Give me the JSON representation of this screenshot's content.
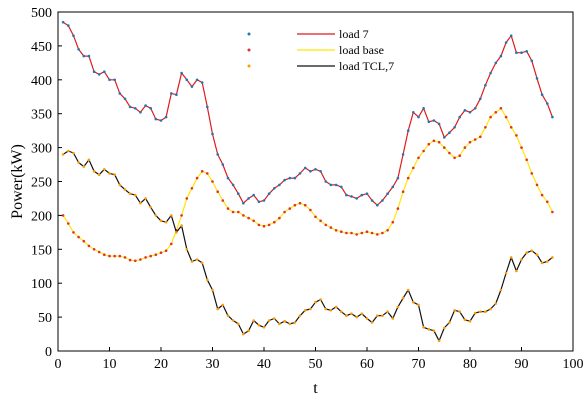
{
  "chart_data": {
    "type": "line",
    "xlabel": "t",
    "ylabel": "Power(kW)",
    "xlim": [
      0,
      100
    ],
    "ylim": [
      0,
      500
    ],
    "xticks": [
      0,
      10,
      20,
      30,
      40,
      50,
      60,
      70,
      80,
      90,
      100
    ],
    "yticks": [
      0,
      50,
      100,
      150,
      200,
      250,
      300,
      350,
      400,
      450,
      500
    ],
    "grid": false,
    "legend_position": "top-center",
    "series": [
      {
        "name": "load 7",
        "color": "#dd1c1c",
        "marker_color": "#1f77b4",
        "x": [
          1,
          2,
          3,
          4,
          5,
          6,
          7,
          8,
          9,
          10,
          11,
          12,
          13,
          14,
          15,
          16,
          17,
          18,
          19,
          20,
          21,
          22,
          23,
          24,
          25,
          26,
          27,
          28,
          29,
          30,
          31,
          32,
          33,
          34,
          35,
          36,
          37,
          38,
          39,
          40,
          41,
          42,
          43,
          44,
          45,
          46,
          47,
          48,
          49,
          50,
          51,
          52,
          53,
          54,
          55,
          56,
          57,
          58,
          59,
          60,
          61,
          62,
          63,
          64,
          65,
          66,
          67,
          68,
          69,
          70,
          71,
          72,
          73,
          74,
          75,
          76,
          77,
          78,
          79,
          80,
          81,
          82,
          83,
          84,
          85,
          86,
          87,
          88,
          89,
          90,
          91,
          92,
          93,
          94,
          95,
          96
        ],
        "values": [
          485,
          480,
          465,
          445,
          435,
          435,
          412,
          408,
          412,
          400,
          400,
          380,
          372,
          360,
          358,
          352,
          362,
          358,
          342,
          340,
          345,
          380,
          378,
          410,
          400,
          390,
          400,
          396,
          360,
          320,
          290,
          275,
          255,
          245,
          232,
          218,
          225,
          230,
          220,
          222,
          232,
          240,
          245,
          252,
          255,
          255,
          262,
          270,
          265,
          268,
          265,
          250,
          245,
          245,
          242,
          230,
          228,
          225,
          230,
          232,
          222,
          215,
          222,
          232,
          242,
          255,
          290,
          325,
          352,
          345,
          358,
          338,
          340,
          335,
          315,
          322,
          330,
          345,
          355,
          352,
          358,
          372,
          392,
          410,
          425,
          435,
          455,
          465,
          440,
          440,
          442,
          428,
          402,
          378,
          365,
          345
        ]
      },
      {
        "name": "load base",
        "color": "#ffe600",
        "marker_color": "#e03030",
        "x": [
          1,
          2,
          3,
          4,
          5,
          6,
          7,
          8,
          9,
          10,
          11,
          12,
          13,
          14,
          15,
          16,
          17,
          18,
          19,
          20,
          21,
          22,
          23,
          24,
          25,
          26,
          27,
          28,
          29,
          30,
          31,
          32,
          33,
          34,
          35,
          36,
          37,
          38,
          39,
          40,
          41,
          42,
          43,
          44,
          45,
          46,
          47,
          48,
          49,
          50,
          51,
          52,
          53,
          54,
          55,
          56,
          57,
          58,
          59,
          60,
          61,
          62,
          63,
          64,
          65,
          66,
          67,
          68,
          69,
          70,
          71,
          72,
          73,
          74,
          75,
          76,
          77,
          78,
          79,
          80,
          81,
          82,
          83,
          84,
          85,
          86,
          87,
          88,
          89,
          90,
          91,
          92,
          93,
          94,
          95,
          96
        ],
        "values": [
          200,
          188,
          175,
          168,
          162,
          155,
          150,
          146,
          142,
          140,
          140,
          140,
          138,
          134,
          133,
          135,
          138,
          140,
          142,
          145,
          148,
          158,
          178,
          200,
          225,
          240,
          255,
          265,
          262,
          250,
          235,
          222,
          210,
          205,
          205,
          200,
          196,
          192,
          186,
          184,
          186,
          190,
          196,
          205,
          210,
          215,
          218,
          215,
          208,
          198,
          192,
          186,
          182,
          178,
          176,
          174,
          174,
          172,
          174,
          176,
          174,
          172,
          174,
          178,
          190,
          210,
          235,
          255,
          270,
          285,
          295,
          305,
          310,
          308,
          300,
          292,
          285,
          288,
          300,
          308,
          312,
          316,
          330,
          345,
          352,
          358,
          345,
          330,
          318,
          300,
          282,
          262,
          245,
          230,
          220,
          205
        ]
      },
      {
        "name": "load TCL,7",
        "color": "#111111",
        "marker_color": "#ff9900",
        "x": [
          1,
          2,
          3,
          4,
          5,
          6,
          7,
          8,
          9,
          10,
          11,
          12,
          13,
          14,
          15,
          16,
          17,
          18,
          19,
          20,
          21,
          22,
          23,
          24,
          25,
          26,
          27,
          28,
          29,
          30,
          31,
          32,
          33,
          34,
          35,
          36,
          37,
          38,
          39,
          40,
          41,
          42,
          43,
          44,
          45,
          46,
          47,
          48,
          49,
          50,
          51,
          52,
          53,
          54,
          55,
          56,
          57,
          58,
          59,
          60,
          61,
          62,
          63,
          64,
          65,
          66,
          67,
          68,
          69,
          70,
          71,
          72,
          73,
          74,
          75,
          76,
          77,
          78,
          79,
          80,
          81,
          82,
          83,
          84,
          85,
          86,
          87,
          88,
          89,
          90,
          91,
          92,
          93,
          94,
          95,
          96
        ],
        "values": [
          290,
          295,
          292,
          278,
          272,
          282,
          265,
          260,
          268,
          262,
          260,
          245,
          238,
          232,
          230,
          218,
          225,
          212,
          200,
          192,
          190,
          200,
          175,
          185,
          150,
          132,
          135,
          130,
          105,
          90,
          62,
          68,
          52,
          45,
          40,
          25,
          30,
          45,
          38,
          35,
          45,
          48,
          40,
          44,
          40,
          42,
          52,
          60,
          62,
          72,
          76,
          62,
          60,
          65,
          58,
          52,
          55,
          50,
          55,
          48,
          42,
          52,
          52,
          58,
          48,
          65,
          78,
          90,
          72,
          68,
          35,
          32,
          30,
          15,
          34,
          42,
          60,
          58,
          46,
          44,
          56,
          58,
          58,
          62,
          70,
          90,
          115,
          138,
          118,
          135,
          145,
          148,
          142,
          130,
          132,
          138
        ]
      }
    ]
  }
}
